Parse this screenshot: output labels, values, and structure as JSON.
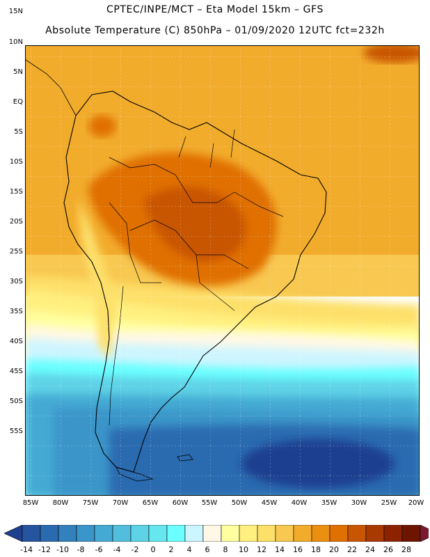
{
  "header": {
    "line1": "CPTEC/INPE/MCT –  Eta Model 15km – GFS",
    "line2": "Absolute Temperature (C) 850hPa – 01/09/2020 12UTC fct=232h"
  },
  "axes": {
    "lat_labels": [
      "15N",
      "10N",
      "5N",
      "EQ",
      "5S",
      "10S",
      "15S",
      "20S",
      "25S",
      "30S",
      "35S",
      "40S",
      "45S",
      "50S",
      "55S"
    ],
    "lon_labels": [
      "85W",
      "80W",
      "75W",
      "70W",
      "65W",
      "60W",
      "55W",
      "50W",
      "45W",
      "40W",
      "35W",
      "30W",
      "25W",
      "20W"
    ]
  },
  "colorbar": {
    "ticks": [
      "-14",
      "-12",
      "-10",
      "-8",
      "-6",
      "-4",
      "-2",
      "0",
      "2",
      "4",
      "6",
      "8",
      "10",
      "12",
      "14",
      "16",
      "18",
      "20",
      "22",
      "24",
      "26",
      "28"
    ],
    "colors": [
      "#1f3f8f",
      "#25559f",
      "#2a6aaf",
      "#3280bd",
      "#3a95c9",
      "#45aad3",
      "#52bedd",
      "#5ed2e6",
      "#66e7f0",
      "#6bffff",
      "#cdf5ff",
      "#fff8e6",
      "#ffffa0",
      "#fff080",
      "#fde06a",
      "#f8c850",
      "#f2ac2c",
      "#eb8f10",
      "#e07000",
      "#c85500",
      "#a83a00",
      "#8c2200",
      "#6e1500",
      "#7a1a30"
    ]
  }
}
